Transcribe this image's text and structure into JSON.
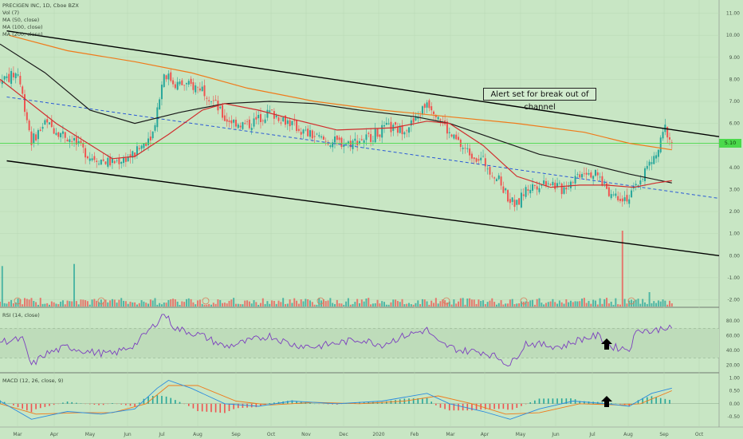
{
  "legend": {
    "title": "PRECIGEN INC, 1D, Cboe BZX",
    "vol": "Vol (7)",
    "ma50": "MA (50, close)",
    "ma100": "MA (100, close)",
    "ma200": "MA (200, close)"
  },
  "annotation": "Alert set for break out of channel",
  "price_tag": "5.10",
  "rsi_label": "RSI (14, close)",
  "macd_label": "MACD (12, 26, close, 9)",
  "colors": {
    "background": "#c8e6c4",
    "up_candle": "#26a69a",
    "down_candle": "#ef5350",
    "ma50": "#d02e2e",
    "ma100": "#1a1a1a",
    "ma200": "#f07a1a",
    "channel": "#000000",
    "midline": "#2a59d6",
    "rsi": "#7c3fbf",
    "macd": "#2a8be0",
    "signal": "#f07a1a",
    "hline": "#4bd94b"
  },
  "arrow_icon": "up-arrow-icon",
  "chart_data": {
    "type": "candlestick",
    "x_ticks": [
      "Mar",
      "Apr",
      "May",
      "Jun",
      "Jul",
      "Aug",
      "Sep",
      "Oct",
      "Nov",
      "Dec",
      "2020",
      "Feb",
      "Mar",
      "Apr",
      "May",
      "Jun",
      "Jul",
      "Aug",
      "Sep",
      "Oct"
    ],
    "price_ticks": [
      "11.00",
      "10.00",
      "9.00",
      "8.00",
      "7.00",
      "6.00",
      "5.00",
      "4.00",
      "3.00",
      "2.00",
      "1.00",
      "0.00",
      "-1.00",
      "-2.00"
    ],
    "rsi_ticks": [
      "80.00",
      "60.00",
      "40.00",
      "20.00"
    ],
    "macd_ticks": [
      "1.00",
      "0.50",
      "0.00",
      "-0.50"
    ],
    "close_key": [
      [
        0,
        7.9
      ],
      [
        8,
        8.3
      ],
      [
        14,
        5.2
      ],
      [
        20,
        6.0
      ],
      [
        30,
        5.4
      ],
      [
        40,
        4.5
      ],
      [
        50,
        4.2
      ],
      [
        60,
        4.6
      ],
      [
        68,
        5.6
      ],
      [
        73,
        8.3
      ],
      [
        78,
        7.8
      ],
      [
        85,
        7.7
      ],
      [
        90,
        7.6
      ],
      [
        95,
        7.0
      ],
      [
        100,
        6.2
      ],
      [
        110,
        5.9
      ],
      [
        120,
        6.5
      ],
      [
        128,
        6.1
      ],
      [
        135,
        5.6
      ],
      [
        145,
        5.2
      ],
      [
        155,
        5.1
      ],
      [
        165,
        5.4
      ],
      [
        172,
        5.8
      ],
      [
        178,
        5.7
      ],
      [
        185,
        6.1
      ],
      [
        190,
        7.0
      ],
      [
        195,
        6.4
      ],
      [
        200,
        5.5
      ],
      [
        207,
        4.8
      ],
      [
        215,
        4.3
      ],
      [
        222,
        3.4
      ],
      [
        227,
        2.5
      ],
      [
        230,
        2.3
      ],
      [
        234,
        3.0
      ],
      [
        238,
        3.2
      ],
      [
        244,
        3.4
      ],
      [
        250,
        3.0
      ],
      [
        255,
        3.5
      ],
      [
        260,
        3.9
      ],
      [
        266,
        3.6
      ],
      [
        272,
        2.8
      ],
      [
        276,
        2.7
      ],
      [
        280,
        2.6
      ],
      [
        284,
        3.3
      ],
      [
        288,
        4.0
      ],
      [
        292,
        4.5
      ],
      [
        296,
        5.8
      ],
      [
        299,
        5.1
      ]
    ],
    "ma50": [
      [
        0,
        8.0
      ],
      [
        25,
        6.0
      ],
      [
        50,
        4.4
      ],
      [
        60,
        4.5
      ],
      [
        75,
        5.5
      ],
      [
        90,
        6.6
      ],
      [
        100,
        6.9
      ],
      [
        115,
        6.6
      ],
      [
        130,
        6.2
      ],
      [
        150,
        5.7
      ],
      [
        175,
        5.8
      ],
      [
        190,
        6.1
      ],
      [
        200,
        6.0
      ],
      [
        215,
        5.0
      ],
      [
        230,
        3.6
      ],
      [
        245,
        3.1
      ],
      [
        258,
        3.2
      ],
      [
        270,
        3.2
      ],
      [
        282,
        3.1
      ],
      [
        292,
        3.3
      ],
      [
        299,
        3.4
      ]
    ],
    "ma100": [
      [
        0,
        9.6
      ],
      [
        20,
        8.3
      ],
      [
        40,
        6.6
      ],
      [
        60,
        6.0
      ],
      [
        80,
        6.5
      ],
      [
        100,
        6.9
      ],
      [
        120,
        7.0
      ],
      [
        140,
        6.9
      ],
      [
        160,
        6.6
      ],
      [
        185,
        6.3
      ],
      [
        200,
        6.0
      ],
      [
        220,
        5.3
      ],
      [
        240,
        4.6
      ],
      [
        260,
        4.2
      ],
      [
        280,
        3.7
      ],
      [
        299,
        3.3
      ]
    ],
    "ma200": [
      [
        4,
        10.0
      ],
      [
        30,
        9.3
      ],
      [
        60,
        8.8
      ],
      [
        85,
        8.3
      ],
      [
        110,
        7.6
      ],
      [
        140,
        7.0
      ],
      [
        170,
        6.6
      ],
      [
        200,
        6.3
      ],
      [
        230,
        6.0
      ],
      [
        260,
        5.6
      ],
      [
        280,
        5.1
      ],
      [
        299,
        4.8
      ]
    ],
    "channel_upper": [
      [
        3,
        10.2
      ],
      [
        320,
        5.4
      ]
    ],
    "channel_lower": [
      [
        3,
        4.3
      ],
      [
        320,
        0.0
      ]
    ],
    "channel_mid": [
      [
        3,
        7.2
      ],
      [
        320,
        2.6
      ]
    ],
    "hline": 5.1,
    "rsi": [
      [
        0,
        52
      ],
      [
        10,
        55
      ],
      [
        14,
        20
      ],
      [
        20,
        35
      ],
      [
        30,
        45
      ],
      [
        40,
        38
      ],
      [
        50,
        35
      ],
      [
        60,
        48
      ],
      [
        68,
        72
      ],
      [
        73,
        90
      ],
      [
        78,
        70
      ],
      [
        90,
        60
      ],
      [
        100,
        45
      ],
      [
        110,
        52
      ],
      [
        120,
        60
      ],
      [
        130,
        48
      ],
      [
        140,
        45
      ],
      [
        150,
        50
      ],
      [
        160,
        55
      ],
      [
        170,
        48
      ],
      [
        180,
        60
      ],
      [
        190,
        68
      ],
      [
        195,
        50
      ],
      [
        205,
        40
      ],
      [
        215,
        38
      ],
      [
        222,
        30
      ],
      [
        227,
        20
      ],
      [
        234,
        50
      ],
      [
        240,
        48
      ],
      [
        250,
        45
      ],
      [
        258,
        55
      ],
      [
        266,
        60
      ],
      [
        272,
        45
      ],
      [
        280,
        42
      ],
      [
        284,
        70
      ],
      [
        290,
        65
      ],
      [
        296,
        72
      ],
      [
        299,
        68
      ]
    ],
    "macd": [
      [
        0,
        0.1
      ],
      [
        14,
        -0.6
      ],
      [
        30,
        -0.3
      ],
      [
        45,
        -0.4
      ],
      [
        60,
        -0.2
      ],
      [
        70,
        0.6
      ],
      [
        75,
        0.9
      ],
      [
        85,
        0.6
      ],
      [
        100,
        0.0
      ],
      [
        115,
        -0.1
      ],
      [
        130,
        0.1
      ],
      [
        150,
        0.0
      ],
      [
        170,
        0.1
      ],
      [
        190,
        0.4
      ],
      [
        200,
        0.0
      ],
      [
        215,
        -0.3
      ],
      [
        227,
        -0.6
      ],
      [
        240,
        -0.2
      ],
      [
        255,
        0.1
      ],
      [
        270,
        0.0
      ],
      [
        280,
        -0.1
      ],
      [
        290,
        0.4
      ],
      [
        299,
        0.6
      ]
    ],
    "signal": [
      [
        0,
        0.0
      ],
      [
        16,
        -0.4
      ],
      [
        35,
        -0.35
      ],
      [
        50,
        -0.35
      ],
      [
        65,
        0.0
      ],
      [
        75,
        0.7
      ],
      [
        88,
        0.7
      ],
      [
        105,
        0.1
      ],
      [
        120,
        -0.05
      ],
      [
        140,
        0.05
      ],
      [
        160,
        0.0
      ],
      [
        180,
        0.1
      ],
      [
        195,
        0.3
      ],
      [
        210,
        0.0
      ],
      [
        225,
        -0.4
      ],
      [
        240,
        -0.35
      ],
      [
        258,
        0.0
      ],
      [
        275,
        -0.05
      ],
      [
        285,
        0.0
      ],
      [
        299,
        0.5
      ]
    ],
    "x_range": [
      0,
      320
    ],
    "price_range": [
      -2.2,
      11.6
    ],
    "rsi_range": [
      10,
      95
    ],
    "macd_range": [
      -0.9,
      1.1
    ]
  }
}
